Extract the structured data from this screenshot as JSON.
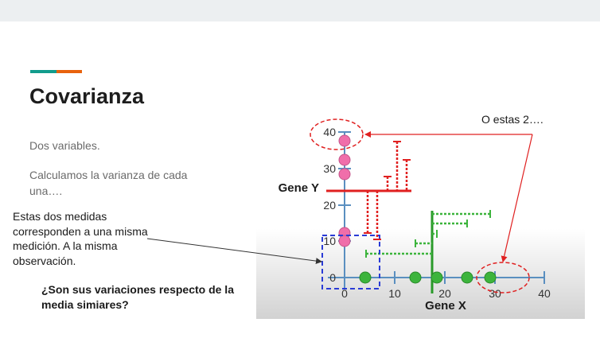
{
  "slide": {
    "title": "Covarianza",
    "body": [
      "Dos variables.",
      "Calculamos la varianza de cada una…."
    ],
    "note": "Estas dos medidas corresponden a una misma medición. A la misma observación.",
    "question": "¿Son sus variaciones respecto de la media simiares?",
    "callout": "O estas 2…."
  },
  "figure": {
    "x_axis_label": "Gene X",
    "y_axis_label": "Gene Y",
    "x_ticks": [
      "0",
      "10",
      "20",
      "30",
      "40"
    ],
    "y_ticks": [
      "0",
      "10",
      "20",
      "30",
      "40"
    ],
    "colors": {
      "axis": "#5a8fc0",
      "gene_x_points": "#3cb43c",
      "gene_y_points": "#f06eaa",
      "gene_x_mean_and_deviations": "#2a9a2a",
      "gene_y_mean_and_deviations": "#e02020",
      "highlight_circle": "#e02020",
      "highlight_box": "#2a3bd6",
      "accent_teal": "#129c8c",
      "accent_orange": "#e8620e"
    }
  }
}
